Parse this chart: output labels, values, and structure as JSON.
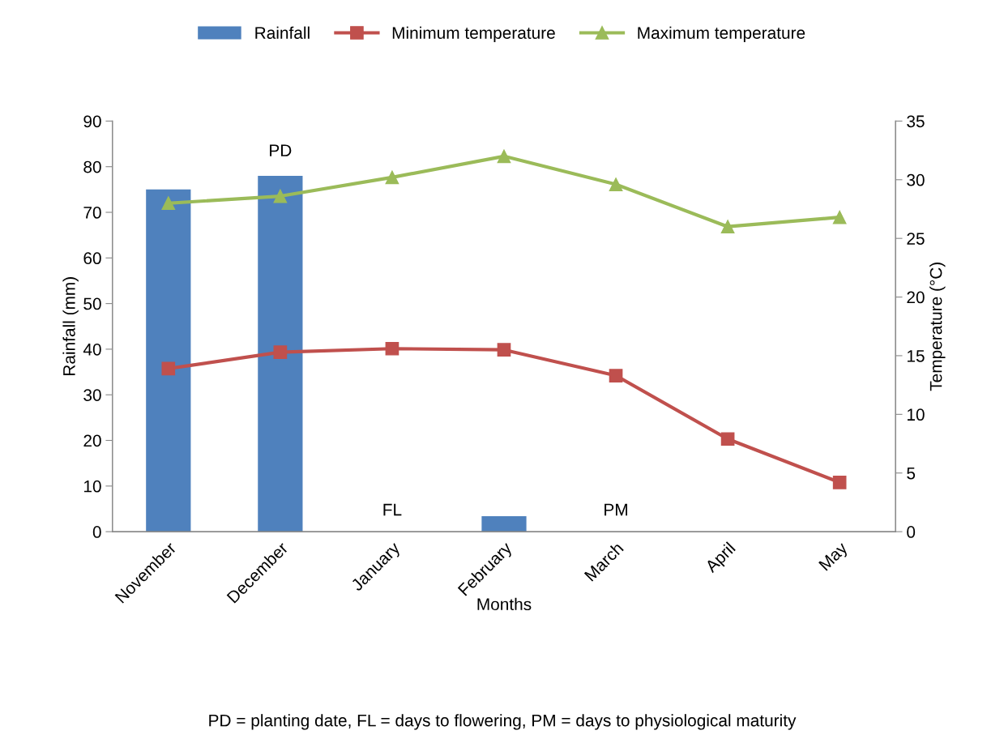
{
  "chart_data": {
    "type": "bar",
    "xlabel": "Months",
    "ylabel": "Rainfall (mm)",
    "y2label": "Temperature (°C)",
    "categories": [
      "November",
      "December",
      "January",
      "February",
      "March",
      "April",
      "May"
    ],
    "series": [
      {
        "name": "Rainfall",
        "color": "#4f81bd",
        "values": [
          75,
          78,
          0,
          3.4,
          0,
          0,
          0
        ]
      },
      {
        "name": "Minimum temperature",
        "type": "line",
        "axis": "y2",
        "marker": "square",
        "color": "#c0504d",
        "values": [
          13.9,
          15.3,
          15.6,
          15.5,
          13.3,
          7.9,
          4.2
        ]
      },
      {
        "name": "Maximum temperature",
        "type": "line",
        "axis": "y2",
        "marker": "triangle",
        "color": "#9bbb59",
        "values": [
          28,
          28.6,
          30.2,
          32,
          29.6,
          26,
          26.8
        ]
      }
    ],
    "ylim": [
      0,
      90
    ],
    "yticks": [
      0,
      10,
      20,
      30,
      40,
      50,
      60,
      70,
      80,
      90
    ],
    "y2lim": [
      0,
      35
    ],
    "y2ticks": [
      0,
      5,
      10,
      15,
      20,
      25,
      30,
      35
    ],
    "grid": false,
    "legend": "top",
    "annotations": [
      "PD",
      "FL",
      "PM",
      "PD = planting date, FL = days to flowering, PM = days to physiological maturity"
    ]
  }
}
